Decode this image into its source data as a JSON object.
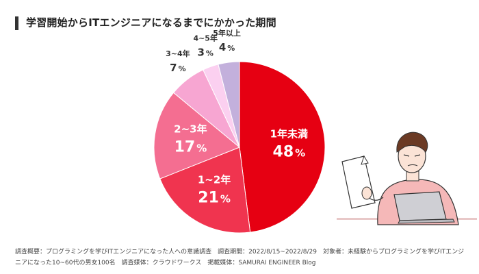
{
  "title": "学習開始からITエンジニアになるまでにかかった期間",
  "footnote": "調査概要：プログラミングを学びITエンジニアになった人への意識調査　調査期間：2022/8/15~2022/8/29　対象者：未経験からプログラミングを学びITエンジニアになった10~60代の男女100名　調査媒体：クラウドワークス　掲載媒体：SAMURAI ENGINEER Blog",
  "colors": {
    "s1": "#e60012",
    "s2": "#f0344f",
    "s3": "#f46e91",
    "s4": "#f7a6d2",
    "s5": "#fbd0f0",
    "s6": "#c3b0dc"
  },
  "chart_data": {
    "type": "pie",
    "title": "学習開始からITエンジニアになるまでにかかった期間",
    "percent_suffix": "%",
    "slices": [
      {
        "label": "1年未満",
        "value": 48
      },
      {
        "label": "1~2年",
        "value": 21
      },
      {
        "label": "2~3年",
        "value": 17
      },
      {
        "label": "3~4年",
        "value": 7
      },
      {
        "label": "4~5年",
        "value": 3
      },
      {
        "label": "5年以上",
        "value": 4
      }
    ]
  }
}
